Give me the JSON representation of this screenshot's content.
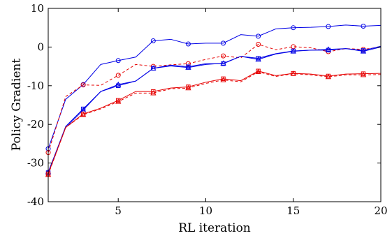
{
  "chart_data": {
    "type": "line",
    "xlabel": "RL iteration",
    "ylabel": "Policy Gradient",
    "xlim": [
      1,
      20
    ],
    "ylim": [
      -40,
      10
    ],
    "xticks": [
      5,
      10,
      15,
      20
    ],
    "yticks": [
      -40,
      -30,
      -20,
      -10,
      0,
      10
    ],
    "grid": false,
    "legend": "none",
    "x": [
      1,
      2,
      3,
      4,
      5,
      6,
      7,
      8,
      9,
      10,
      11,
      12,
      13,
      14,
      15,
      16,
      17,
      18,
      19,
      20
    ],
    "series": [
      {
        "color": "#0000e6",
        "dash": "solid",
        "marker": "circle",
        "marker_every": 2,
        "values": [
          -26.3,
          -13.5,
          -9.7,
          -4.5,
          -3.5,
          -2.6,
          1.6,
          2.0,
          0.8,
          1.0,
          1.0,
          3.2,
          2.8,
          4.7,
          5.0,
          5.1,
          5.3,
          5.7,
          5.4,
          5.6
        ]
      },
      {
        "color": "#e60000",
        "dash": "dashed",
        "marker": "circle",
        "marker_every": 2,
        "values": [
          -27.3,
          -12.8,
          -9.8,
          -9.9,
          -7.3,
          -4.5,
          -5.0,
          -4.6,
          -4.3,
          -3.2,
          -2.3,
          -2.8,
          0.7,
          -0.7,
          0.1,
          -0.2,
          -1.2,
          -0.4,
          -0.6,
          0.0
        ]
      },
      {
        "color": "#0000e6",
        "dash": "solid",
        "marker": "square",
        "marker_every": 2,
        "values": [
          -32.5,
          -20.5,
          -16.0,
          -11.5,
          -10.0,
          -8.8,
          -5.5,
          -4.7,
          -5.1,
          -4.3,
          -4.3,
          -2.4,
          -2.9,
          -1.7,
          -1.0,
          -0.8,
          -0.8,
          -0.4,
          -0.9,
          0.2
        ]
      },
      {
        "color": "#0000e6",
        "dash": "solid",
        "marker": "triangle",
        "marker_every": 2,
        "values": [
          -32.3,
          -20.8,
          -16.3,
          -11.5,
          -9.7,
          -8.8,
          -5.5,
          -4.9,
          -5.3,
          -4.5,
          -4.2,
          -2.4,
          -3.2,
          -1.8,
          -1.1,
          -0.8,
          -0.6,
          -0.4,
          -1.1,
          0.0
        ]
      },
      {
        "color": "#e60000",
        "dash": "dashed",
        "marker": "triangle",
        "marker_every": 2,
        "values": [
          -33.0,
          -20.8,
          -17.5,
          -16.0,
          -14.1,
          -11.9,
          -11.9,
          -10.8,
          -10.6,
          -9.4,
          -8.5,
          -9.0,
          -6.4,
          -7.6,
          -6.9,
          -7.2,
          -7.7,
          -7.2,
          -7.2,
          -7.1
        ]
      },
      {
        "color": "#e60000",
        "dash": "solid",
        "marker": "square",
        "marker_every": 2,
        "values": [
          -32.8,
          -20.8,
          -17.3,
          -15.8,
          -13.8,
          -11.5,
          -11.5,
          -10.6,
          -10.3,
          -9.1,
          -8.2,
          -8.7,
          -6.2,
          -7.4,
          -6.8,
          -7.0,
          -7.5,
          -7.0,
          -6.9,
          -6.8
        ]
      }
    ]
  }
}
